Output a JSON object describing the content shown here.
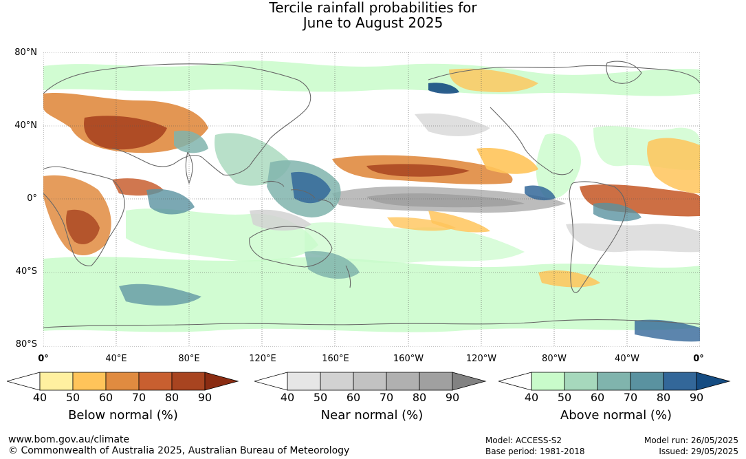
{
  "title": {
    "line1": "Tercile rainfall probabilities for",
    "line2": "June to August 2025"
  },
  "lat_labels": [
    "80°N",
    "40°N",
    "0°",
    "40°S",
    "80°S"
  ],
  "lon_labels": [
    "0°",
    "40°E",
    "80°E",
    "120°E",
    "160°E",
    "160°W",
    "120°W",
    "80°W",
    "40°W",
    "0°"
  ],
  "colorbars": [
    {
      "label": "Below normal (%)",
      "ticks": [
        "40",
        "50",
        "60",
        "70",
        "80",
        "90"
      ],
      "colors": [
        "#ffffff",
        "#fff0a0",
        "#ffc45a",
        "#e08b40",
        "#c85f30",
        "#a84420",
        "#8a2c12"
      ]
    },
    {
      "label": "Near normal (%)",
      "ticks": [
        "40",
        "50",
        "60",
        "70",
        "80",
        "90"
      ],
      "colors": [
        "#ffffff",
        "#e6e6e6",
        "#d2d2d2",
        "#c2c2c2",
        "#b0b0b0",
        "#a0a0a0",
        "#828282"
      ]
    },
    {
      "label": "Above normal (%)",
      "ticks": [
        "40",
        "50",
        "60",
        "70",
        "80",
        "90"
      ],
      "colors": [
        "#ffffff",
        "#c9fbca",
        "#a6d8bc",
        "#80b4ad",
        "#5a92a0",
        "#336799",
        "#154c82"
      ]
    }
  ],
  "footer": {
    "url": "www.bom.gov.au/climate",
    "copyright": "© Commonwealth of Australia 2025, Australian Bureau of Meteorology",
    "model": "Model: ACCESS-S2",
    "base_period": "Base period: 1981-2018",
    "model_run": "Model run: 26/05/2025",
    "issued": "Issued: 29/05/2025"
  }
}
